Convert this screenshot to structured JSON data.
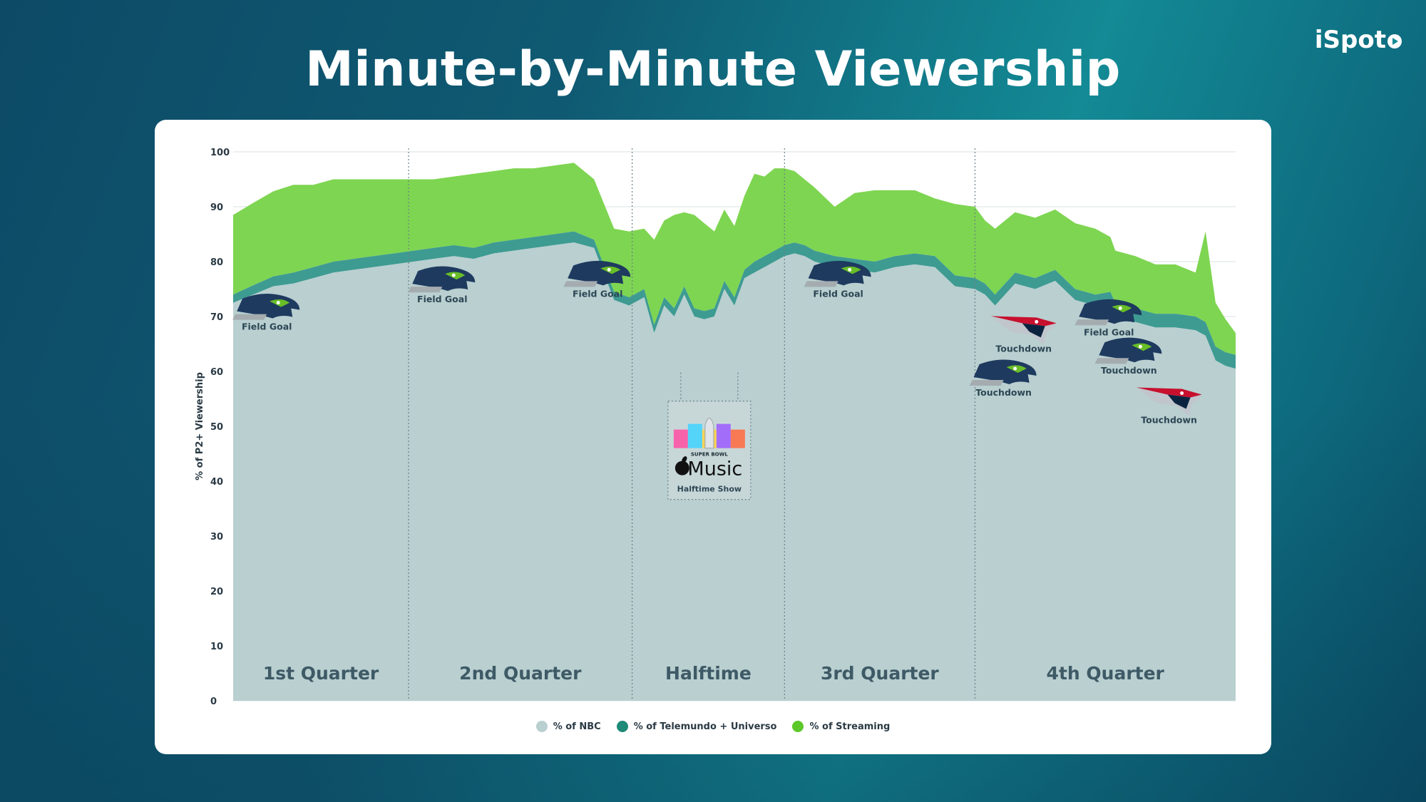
{
  "page": {
    "title": "Minute-by-Minute Viewership",
    "brand": "iSpot"
  },
  "colors": {
    "nbc": "#b9cfd0",
    "telemundo": "#3e9b92",
    "streaming": "#7ed551",
    "grid": "#d9e0e3",
    "team_logo_blue": "#1e3a5f",
    "team_logo_green": "#69be28",
    "patriots_red": "#c8102e"
  },
  "chart_data": {
    "type": "area",
    "stacked": true,
    "title": "Minute-by-Minute Viewership",
    "xlabel": "",
    "ylabel": "% of P2+ Viewership",
    "ylim": [
      0,
      100
    ],
    "yticks": [
      0,
      10,
      20,
      30,
      40,
      50,
      60,
      70,
      80,
      90,
      100
    ],
    "grid": true,
    "legend_position": "bottom",
    "x_range": [
      0,
      100
    ],
    "x": [
      0,
      2,
      4,
      6,
      8,
      10,
      12,
      14,
      16,
      18,
      20,
      22,
      24,
      26,
      28,
      30,
      32,
      34,
      36,
      38,
      39.5,
      41,
      42,
      43,
      44,
      45,
      46,
      47,
      48,
      49,
      50,
      51,
      52,
      53,
      54,
      55,
      56,
      57,
      58,
      60,
      62,
      64,
      66,
      68,
      70,
      72,
      74,
      75,
      76,
      78,
      80,
      82,
      84,
      86,
      87.5,
      88,
      90,
      92,
      94,
      96,
      97,
      98,
      99,
      100
    ],
    "series": [
      {
        "name": "% of NBC",
        "values": [
          72.5,
          74,
          75.5,
          76,
          77,
          78,
          78.5,
          79,
          79.5,
          80,
          80.5,
          81,
          80.5,
          81.5,
          82,
          82.5,
          83,
          83.5,
          82.5,
          73,
          72,
          73.5,
          67,
          72,
          70,
          74,
          70,
          69.5,
          70,
          75,
          72,
          77,
          78,
          79,
          80,
          81,
          81.5,
          81,
          80,
          79,
          78.5,
          78,
          79,
          79.5,
          79,
          75.5,
          75,
          74,
          72,
          76,
          75,
          76.5,
          73,
          72,
          72.5,
          70,
          69,
          68,
          68,
          67.5,
          66.5,
          62,
          61,
          60.5
        ]
      },
      {
        "name": "% of Telemundo + Universo",
        "values": [
          1.5,
          1.7,
          1.8,
          2,
          2,
          2,
          2,
          2,
          2,
          2,
          2,
          2,
          2,
          2,
          2,
          2,
          2,
          2,
          1.5,
          1.5,
          1.5,
          1.5,
          1.5,
          1.5,
          1.5,
          1.5,
          1.5,
          1.5,
          1.5,
          1.5,
          1.5,
          1.5,
          2,
          2,
          2,
          2,
          2,
          2,
          2,
          2,
          2,
          2,
          2,
          2,
          2,
          2,
          2,
          2,
          2,
          2,
          2,
          2,
          2,
          2,
          2,
          2.5,
          2.5,
          2.5,
          2.5,
          2.5,
          2.5,
          2.5,
          2.5,
          2.5
        ]
      },
      {
        "name": "% of Streaming",
        "values": [
          14.5,
          15,
          15.5,
          16,
          15,
          15,
          14.5,
          14,
          13.5,
          13,
          12.5,
          12.5,
          13.5,
          13,
          13,
          12.5,
          12.5,
          12.5,
          11,
          11.5,
          12,
          11,
          15.5,
          14,
          17,
          13.5,
          17,
          16,
          14,
          13,
          13,
          13.5,
          16,
          14.5,
          15,
          14,
          13,
          12,
          11.5,
          9,
          12,
          13,
          12,
          11.5,
          10.5,
          13,
          13,
          11.5,
          12,
          11,
          11,
          11,
          12,
          12,
          10,
          9.5,
          9.5,
          9,
          9,
          8,
          16.5,
          8,
          6,
          4
        ]
      }
    ],
    "quarters": [
      {
        "label": "1st Quarter",
        "start": 0,
        "end": 17.5
      },
      {
        "label": "2nd Quarter",
        "start": 17.5,
        "end": 39.8
      },
      {
        "label": "Halftime",
        "start": 39.8,
        "end": 55
      },
      {
        "label": "3rd Quarter",
        "start": 55,
        "end": 74
      },
      {
        "label": "4th Quarter",
        "start": 74,
        "end": 100
      }
    ],
    "annotations": [
      {
        "label": "Field Goal",
        "team": "seahawks",
        "x": 3.5,
        "y": 72
      },
      {
        "label": "Field Goal",
        "team": "seahawks",
        "x": 21,
        "y": 77
      },
      {
        "label": "Field Goal",
        "team": "seahawks",
        "x": 36.5,
        "y": 78
      },
      {
        "label": "Field Goal",
        "team": "seahawks",
        "x": 60.5,
        "y": 78
      },
      {
        "label": "Touchdown",
        "team": "patriots",
        "x": 79,
        "y": 68
      },
      {
        "label": "Touchdown",
        "team": "seahawks",
        "x": 77,
        "y": 60
      },
      {
        "label": "Field Goal",
        "team": "seahawks",
        "x": 87.5,
        "y": 71
      },
      {
        "label": "Touchdown",
        "team": "seahawks",
        "x": 89.5,
        "y": 64
      },
      {
        "label": "Touchdown",
        "team": "patriots",
        "x": 93.5,
        "y": 55
      }
    ],
    "halftime_badge": {
      "event": "SUPER BOWL",
      "brand": "Music",
      "caption": "Halftime Show",
      "x": 47.5,
      "y": 52
    }
  }
}
